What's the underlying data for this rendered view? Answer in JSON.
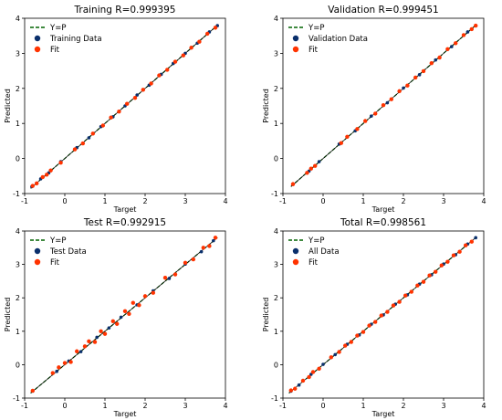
{
  "chart_data": [
    {
      "type": "scatter",
      "title": "Training R=0.999395",
      "xlabel": "Target",
      "ylabel": "Predicted",
      "xlim": [
        -1,
        4
      ],
      "ylim": [
        -1,
        4
      ],
      "xticks": [
        "-1",
        "0",
        "1",
        "2",
        "3",
        "4"
      ],
      "yticks": [
        "-1",
        "0",
        "1",
        "2",
        "3",
        "4"
      ],
      "legend_position": "top-left",
      "legend": [
        "Y=P",
        "Training Data",
        "Fit"
      ],
      "series": [
        {
          "name": "Y=P",
          "kind": "line",
          "color": "#006400",
          "x": [
            -0.85,
            3.8
          ],
          "y": [
            -0.85,
            3.8
          ]
        },
        {
          "name": "Training Data",
          "kind": "scatter",
          "color": "#0a2f6b",
          "x": [
            -0.82,
            -0.6,
            -0.4,
            -0.1,
            0.3,
            0.6,
            0.9,
            1.2,
            1.5,
            1.8,
            2.1,
            2.4,
            2.7,
            3.0,
            3.3,
            3.6,
            3.8
          ],
          "y": [
            -0.8,
            -0.58,
            -0.41,
            -0.09,
            0.31,
            0.59,
            0.91,
            1.19,
            1.5,
            1.81,
            2.09,
            2.4,
            2.71,
            3.0,
            3.29,
            3.61,
            3.79
          ]
        },
        {
          "name": "Fit",
          "kind": "scatter",
          "color": "#ff3300",
          "x": [
            -0.8,
            -0.7,
            -0.55,
            -0.45,
            -0.35,
            -0.1,
            0.25,
            0.45,
            0.7,
            0.95,
            1.15,
            1.35,
            1.55,
            1.75,
            1.95,
            2.15,
            2.35,
            2.55,
            2.75,
            2.95,
            3.15,
            3.35,
            3.55,
            3.75
          ],
          "y": [
            -0.78,
            -0.71,
            -0.53,
            -0.46,
            -0.34,
            -0.12,
            0.26,
            0.43,
            0.71,
            0.94,
            1.17,
            1.34,
            1.56,
            1.73,
            1.96,
            2.14,
            2.37,
            2.53,
            2.76,
            2.94,
            3.16,
            3.33,
            3.56,
            3.73
          ]
        }
      ]
    },
    {
      "type": "scatter",
      "title": "Validation R=0.999451",
      "xlabel": "Target",
      "ylabel": "Predicted",
      "xlim": [
        -1,
        4
      ],
      "ylim": [
        -1,
        4
      ],
      "xticks": [
        "-1",
        "0",
        "1",
        "2",
        "3",
        "4"
      ],
      "yticks": [
        "-1",
        "0",
        "1",
        "2",
        "3",
        "4"
      ],
      "legend_position": "top-left",
      "legend": [
        "Y=P",
        "Validation Data",
        "Fit"
      ],
      "series": [
        {
          "name": "Y=P",
          "kind": "line",
          "color": "#006400",
          "x": [
            -0.8,
            3.8
          ],
          "y": [
            -0.8,
            3.8
          ]
        },
        {
          "name": "Validation Data",
          "kind": "scatter",
          "color": "#0a2f6b",
          "x": [
            -0.75,
            -0.35,
            -0.1,
            0.4,
            0.8,
            1.2,
            1.6,
            2.0,
            2.4,
            2.8,
            3.2,
            3.6
          ],
          "y": [
            -0.74,
            -0.36,
            -0.09,
            0.41,
            0.79,
            1.21,
            1.59,
            2.01,
            2.39,
            2.81,
            3.19,
            3.61
          ]
        },
        {
          "name": "Fit",
          "kind": "scatter",
          "color": "#ff3300",
          "x": [
            -0.75,
            -0.4,
            -0.3,
            -0.2,
            0.45,
            0.6,
            0.85,
            1.05,
            1.3,
            1.5,
            1.7,
            1.9,
            2.1,
            2.3,
            2.5,
            2.7,
            2.9,
            3.1,
            3.3,
            3.5,
            3.7,
            3.8
          ],
          "y": [
            -0.73,
            -0.41,
            -0.29,
            -0.21,
            0.44,
            0.62,
            0.84,
            1.07,
            1.28,
            1.52,
            1.69,
            1.92,
            2.08,
            2.31,
            2.49,
            2.72,
            2.88,
            3.12,
            3.29,
            3.52,
            3.69,
            3.79
          ]
        }
      ]
    },
    {
      "type": "scatter",
      "title": "Test R=0.992915",
      "xlabel": "Target",
      "ylabel": "Predicted",
      "xlim": [
        -1,
        4
      ],
      "ylim": [
        -1,
        4
      ],
      "xticks": [
        "-1",
        "0",
        "1",
        "2",
        "3",
        "4"
      ],
      "yticks": [
        "-1",
        "0",
        "1",
        "2",
        "3",
        "4"
      ],
      "legend_position": "top-left",
      "legend": [
        "Y=P",
        "Test Data",
        "Fit"
      ],
      "series": [
        {
          "name": "Y=P",
          "kind": "line",
          "color": "#006400",
          "x": [
            -0.85,
            3.8
          ],
          "y": [
            -0.85,
            3.8
          ]
        },
        {
          "name": "Test Data",
          "kind": "scatter",
          "color": "#0a2f6b",
          "x": [
            -0.8,
            -0.2,
            0.1,
            0.4,
            0.8,
            1.1,
            1.4,
            1.8,
            2.2,
            2.6,
            3.0,
            3.4,
            3.7
          ],
          "y": [
            -0.79,
            -0.2,
            0.11,
            0.39,
            0.82,
            1.1,
            1.42,
            1.79,
            2.21,
            2.58,
            3.01,
            3.38,
            3.71
          ]
        },
        {
          "name": "Fit",
          "kind": "scatter",
          "color": "#ff3300",
          "x": [
            -0.8,
            -0.3,
            -0.15,
            0.0,
            0.15,
            0.3,
            0.5,
            0.6,
            0.75,
            0.9,
            1.0,
            1.2,
            1.3,
            1.5,
            1.6,
            1.7,
            1.85,
            2.0,
            2.2,
            2.5,
            2.75,
            3.0,
            3.2,
            3.45,
            3.6,
            3.75
          ],
          "y": [
            -0.78,
            -0.25,
            -0.08,
            0.05,
            0.08,
            0.4,
            0.55,
            0.7,
            0.68,
            1.0,
            0.92,
            1.3,
            1.22,
            1.6,
            1.52,
            1.85,
            1.78,
            2.05,
            2.15,
            2.6,
            2.7,
            3.05,
            3.15,
            3.5,
            3.55,
            3.8
          ]
        }
      ]
    },
    {
      "type": "scatter",
      "title": "Total R=0.998561",
      "xlabel": "Target",
      "ylabel": "Predicted",
      "xlim": [
        -1,
        4
      ],
      "ylim": [
        -1,
        4
      ],
      "xticks": [
        "-1",
        "0",
        "1",
        "2",
        "3",
        "4"
      ],
      "yticks": [
        "-1",
        "0",
        "1",
        "2",
        "3",
        "4"
      ],
      "legend_position": "top-left",
      "legend": [
        "Y=P",
        "All Data",
        "Fit"
      ],
      "series": [
        {
          "name": "Y=P",
          "kind": "line",
          "color": "#006400",
          "x": [
            -0.85,
            3.8
          ],
          "y": [
            -0.85,
            3.8
          ]
        },
        {
          "name": "All Data",
          "kind": "scatter",
          "color": "#0a2f6b",
          "x": [
            -0.8,
            -0.6,
            -0.3,
            0.0,
            0.3,
            0.6,
            0.9,
            1.2,
            1.5,
            1.8,
            2.1,
            2.4,
            2.7,
            3.0,
            3.3,
            3.6,
            3.8
          ],
          "y": [
            -0.79,
            -0.61,
            -0.29,
            0.01,
            0.3,
            0.61,
            0.89,
            1.21,
            1.49,
            1.81,
            2.09,
            2.41,
            2.69,
            3.01,
            3.29,
            3.61,
            3.8
          ]
        },
        {
          "name": "Fit",
          "kind": "scatter",
          "color": "#ff3300",
          "x": [
            -0.8,
            -0.7,
            -0.5,
            -0.35,
            -0.25,
            -0.1,
            0.2,
            0.4,
            0.55,
            0.7,
            0.85,
            1.0,
            1.15,
            1.3,
            1.45,
            1.6,
            1.75,
            1.9,
            2.05,
            2.2,
            2.35,
            2.5,
            2.65,
            2.8,
            2.95,
            3.1,
            3.25,
            3.4,
            3.55,
            3.7
          ],
          "y": [
            -0.77,
            -0.72,
            -0.48,
            -0.37,
            -0.22,
            -0.12,
            0.22,
            0.38,
            0.57,
            0.68,
            0.87,
            0.98,
            1.17,
            1.28,
            1.47,
            1.58,
            1.77,
            1.88,
            2.07,
            2.18,
            2.37,
            2.48,
            2.67,
            2.78,
            2.97,
            3.08,
            3.27,
            3.38,
            3.57,
            3.68
          ]
        }
      ]
    }
  ]
}
